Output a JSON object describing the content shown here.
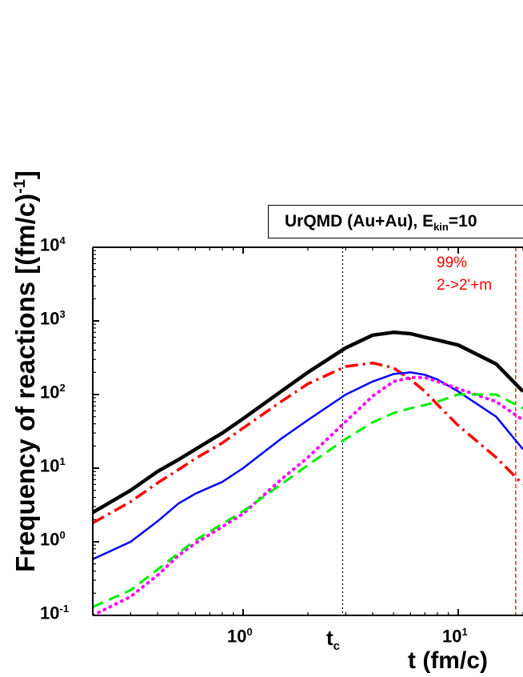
{
  "chart_data": {
    "type": "line",
    "title": "UrQMD (Au+Au), E",
    "title_sub": "kin",
    "title_tail": "=10",
    "xlabel": "t (fm/c)",
    "ylabel": "Frequency of reactions [(fm/c)",
    "ylabel_sup": "-1",
    "ylabel_tail": "]",
    "xscale": "log",
    "yscale": "log",
    "xlim": [
      0.2,
      20
    ],
    "ylim": [
      0.1,
      10000
    ],
    "x_tick_labels": [
      {
        "base": "10",
        "exp": "0",
        "value": 1
      },
      {
        "base": "10",
        "exp": "1",
        "value": 10
      }
    ],
    "y_tick_labels": [
      {
        "base": "10",
        "exp": "-1",
        "value": 0.1
      },
      {
        "base": "10",
        "exp": "0",
        "value": 1
      },
      {
        "base": "10",
        "exp": "1",
        "value": 10
      },
      {
        "base": "10",
        "exp": "2",
        "value": 100
      },
      {
        "base": "10",
        "exp": "3",
        "value": 1000
      },
      {
        "base": "10",
        "exp": "4",
        "value": 10000
      }
    ],
    "tc_label": "t",
    "tc_sub": "c",
    "tc_value": 2.9,
    "marker_line_value": 18.5,
    "annotation_line1": "99%",
    "annotation_line2": "2->2'+m",
    "series": [
      {
        "color": "#000000",
        "style": "solid",
        "width": 4.5,
        "x": [
          0.2,
          0.3,
          0.4,
          0.5,
          0.6,
          0.8,
          1,
          1.5,
          2,
          3,
          4,
          5,
          6,
          7,
          8,
          10,
          15,
          20
        ],
        "y": [
          2.5,
          5,
          9,
          13,
          18,
          30,
          47,
          110,
          200,
          430,
          640,
          700,
          670,
          600,
          550,
          470,
          260,
          110
        ]
      },
      {
        "color": "#ff0000",
        "style": "dashdot",
        "width": 3.5,
        "x": [
          0.2,
          0.3,
          0.4,
          0.5,
          0.6,
          0.8,
          1,
          1.5,
          2,
          3,
          4,
          5,
          6,
          7,
          8,
          10,
          15,
          20
        ],
        "y": [
          1.8,
          3.5,
          6.3,
          9.5,
          13.5,
          22,
          35,
          80,
          140,
          240,
          268,
          230,
          160,
          110,
          73,
          38,
          14,
          6
        ]
      },
      {
        "color": "#0000ff",
        "style": "solid",
        "width": 2.5,
        "x": [
          0.2,
          0.3,
          0.4,
          0.5,
          0.6,
          0.8,
          1,
          1.5,
          2,
          3,
          4,
          5,
          6,
          7,
          8,
          10,
          15,
          20
        ],
        "y": [
          0.58,
          1,
          1.9,
          3.3,
          4.5,
          6.5,
          10,
          25,
          45,
          100,
          150,
          190,
          200,
          185,
          160,
          110,
          50,
          18
        ]
      },
      {
        "color": "#ff00ff",
        "style": "dotted",
        "width": 4,
        "x": [
          0.2,
          0.3,
          0.4,
          0.5,
          0.6,
          0.8,
          1,
          1.5,
          2,
          3,
          4,
          5,
          6,
          7,
          8,
          10,
          15,
          20
        ],
        "y": [
          0.1,
          0.18,
          0.35,
          0.65,
          0.95,
          1.6,
          2.4,
          7,
          14,
          43,
          95,
          150,
          170,
          170,
          150,
          120,
          80,
          45
        ]
      },
      {
        "color": "#00ee00",
        "style": "dashed",
        "width": 3,
        "x": [
          0.2,
          0.3,
          0.4,
          0.5,
          0.6,
          0.8,
          1,
          1.5,
          2,
          3,
          4,
          5,
          6,
          7,
          8,
          10,
          15,
          20
        ],
        "y": [
          0.13,
          0.22,
          0.42,
          0.7,
          1.05,
          1.75,
          2.6,
          6,
          11,
          25,
          42,
          56,
          65,
          72,
          80,
          100,
          100,
          65
        ]
      }
    ]
  }
}
